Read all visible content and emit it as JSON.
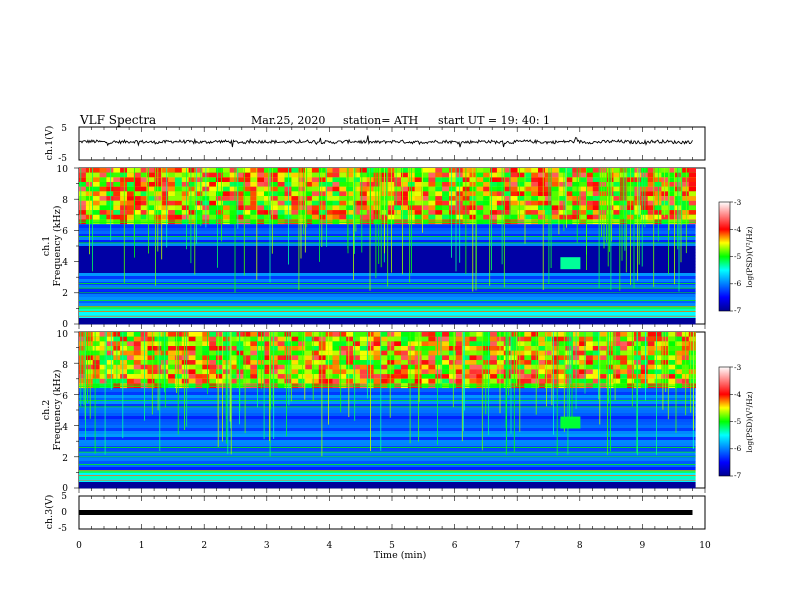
{
  "header": {
    "title": "VLF  Spectra",
    "date": "Mar.25, 2020",
    "station": "station= ATH",
    "start": "start  UT  =    19: 40: 1"
  },
  "chart_data": [
    {
      "id": "ch1-waveform",
      "type": "line",
      "ylabel": "ch.1(V)",
      "ylim": [
        -5,
        5
      ],
      "yticks": [
        "5",
        "-5"
      ],
      "xlim": [
        0,
        10
      ],
      "mean_level": 0.5,
      "amplitude": 0.7,
      "color": "#000000"
    },
    {
      "id": "ch1-spectrogram",
      "type": "heatmap",
      "ylabel": "ch.1\nFrequency (kHz)",
      "ylabel_lines": [
        "ch.1",
        "Frequency  (kHz)"
      ],
      "ylim": [
        0,
        10
      ],
      "yticks": [
        "0",
        "2",
        "4",
        "6",
        "8",
        "10"
      ],
      "xlim": [
        0,
        9.85
      ],
      "colorbar": {
        "label": "log(PSD)(V²/Hz)",
        "ticks": [
          "-3",
          "-4",
          "-5",
          "-6",
          "-7"
        ],
        "range": [
          -7,
          -3
        ]
      },
      "intense_band_khz": [
        6.5,
        10
      ],
      "quiet_band_khz": [
        3.3,
        5.0
      ],
      "event": {
        "t_min": 7.85,
        "f_khz": 3.9,
        "level": -5.3
      }
    },
    {
      "id": "ch2-spectrogram",
      "type": "heatmap",
      "ylabel": "ch.2\nFrequency (kHz)",
      "ylabel_lines": [
        "ch.2",
        "Frequency  (kHz)"
      ],
      "ylim": [
        0,
        10
      ],
      "yticks": [
        "0",
        "2",
        "4",
        "6",
        "8",
        "10"
      ],
      "xlim": [
        0,
        9.85
      ],
      "colorbar": {
        "label": "log(PSD)(V²/Hz)",
        "ticks": [
          "-3",
          "-4",
          "-5",
          "-6",
          "-7"
        ],
        "range": [
          -7,
          -3
        ]
      },
      "intense_band_khz": [
        6.5,
        10
      ],
      "event": {
        "t_min": 7.85,
        "f_khz": 4.2,
        "level": -5.1
      }
    },
    {
      "id": "ch3-waveform",
      "type": "line",
      "ylabel": "ch.3(V)",
      "ylim": [
        -5,
        5
      ],
      "yticks": [
        "5",
        "0",
        "-5"
      ],
      "xlim": [
        0,
        10
      ],
      "mean_level": 0.0,
      "amplitude": 0.0,
      "color": "#000000",
      "xlabel": "Time  (min)",
      "xticks": [
        "0",
        "1",
        "2",
        "3",
        "4",
        "5",
        "6",
        "7",
        "8",
        "9",
        "10"
      ]
    }
  ]
}
